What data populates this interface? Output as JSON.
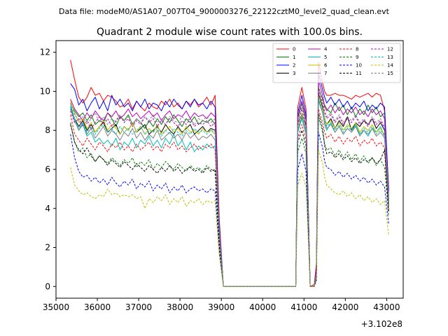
{
  "chart_data": {
    "type": "line",
    "suptitle": "Data file: modeM0/AS1A07_007T04_9000003276_22122cztM0_level2_quad_clean.evt",
    "title": "Quadrant 2 module wise count rates with 100.0s bins.",
    "xlabel": "",
    "ylabel": "",
    "x_offset_label": "+3.102e8",
    "xlim": [
      35000,
      43400
    ],
    "ylim": [
      -0.6,
      12.6
    ],
    "xticks": [
      35000,
      36000,
      37000,
      38000,
      39000,
      40000,
      41000,
      42000,
      43000
    ],
    "yticks": [
      0,
      2,
      4,
      6,
      8,
      10,
      12
    ],
    "grid": false,
    "legend_position": "top-right",
    "x": [
      35350,
      35450,
      35550,
      35650,
      35750,
      35850,
      35950,
      36050,
      36150,
      36250,
      36350,
      36450,
      36550,
      36650,
      36750,
      36850,
      36950,
      37050,
      37150,
      37250,
      37350,
      37450,
      37550,
      37650,
      37750,
      37850,
      37950,
      38050,
      38150,
      38250,
      38350,
      38450,
      38550,
      38650,
      38750,
      38850,
      38950,
      39050,
      40800,
      40850,
      40950,
      41050,
      41150,
      41250,
      41300,
      41350,
      41450,
      41500,
      41550,
      41650,
      41750,
      41850,
      41950,
      42050,
      42150,
      42250,
      42350,
      42450,
      42550,
      42650,
      42750,
      42850,
      42950,
      43050
    ],
    "series": [
      {
        "name": "0",
        "color": "#ff0000",
        "dash": "solid",
        "values": [
          11.6,
          10.6,
          9.7,
          9.4,
          9.7,
          10.2,
          9.8,
          9.9,
          9.5,
          9.8,
          9.7,
          9.5,
          9.2,
          9.3,
          9.6,
          9.1,
          9.5,
          9.2,
          9.0,
          9.4,
          9.2,
          9.1,
          9.5,
          9.3,
          9.6,
          9.2,
          9.4,
          9.1,
          9.5,
          9.3,
          9.6,
          9.2,
          9.4,
          9.7,
          9.3,
          9.8,
          3.5,
          0.0,
          0.0,
          9.2,
          10.2,
          9.1,
          0.0,
          0.1,
          1.2,
          11.5,
          10.4,
          10.0,
          9.8,
          9.8,
          9.9,
          9.8,
          9.8,
          9.7,
          9.6,
          9.8,
          9.7,
          9.8,
          9.9,
          9.7,
          9.9,
          9.8,
          9.0,
          5.0
        ]
      },
      {
        "name": "1",
        "color": "#008000",
        "dash": "solid",
        "values": [
          9.4,
          9.0,
          8.7,
          8.9,
          8.5,
          8.8,
          8.3,
          8.5,
          8.4,
          8.9,
          8.6,
          8.2,
          8.7,
          8.5,
          8.8,
          8.3,
          8.6,
          8.4,
          8.1,
          8.5,
          8.2,
          8.6,
          8.3,
          8.7,
          8.4,
          8.8,
          8.5,
          8.2,
          8.6,
          8.4,
          8.7,
          8.3,
          8.5,
          8.4,
          8.6,
          8.3,
          3.0,
          0.0,
          0.0,
          8.6,
          9.4,
          8.5,
          0.0,
          0.0,
          0.8,
          10.2,
          9.6,
          9.3,
          9.1,
          8.9,
          9.4,
          9.0,
          9.3,
          8.8,
          9.2,
          8.7,
          9.1,
          8.8,
          9.3,
          8.9,
          9.2,
          8.7,
          8.9,
          4.8
        ]
      },
      {
        "name": "2",
        "color": "#0000ff",
        "dash": "solid",
        "values": [
          10.4,
          10.1,
          9.3,
          9.6,
          9.0,
          9.4,
          9.7,
          9.1,
          9.5,
          9.0,
          9.8,
          9.3,
          9.6,
          9.2,
          9.4,
          9.0,
          9.5,
          9.2,
          9.6,
          9.1,
          9.4,
          9.3,
          9.0,
          9.5,
          9.2,
          9.6,
          9.3,
          9.1,
          9.5,
          9.2,
          9.6,
          9.3,
          9.4,
          9.1,
          9.5,
          9.2,
          3.2,
          0.0,
          0.0,
          8.9,
          9.8,
          8.8,
          0.0,
          0.0,
          1.0,
          10.9,
          10.1,
          9.7,
          9.4,
          9.7,
          9.3,
          9.6,
          9.2,
          9.5,
          9.1,
          9.4,
          9.2,
          9.5,
          9.0,
          9.3,
          9.1,
          9.4,
          9.2,
          4.9
        ]
      },
      {
        "name": "3",
        "color": "#000000",
        "dash": "solid",
        "values": [
          9.2,
          8.6,
          8.2,
          8.5,
          8.0,
          8.3,
          7.9,
          8.2,
          8.4,
          7.9,
          8.1,
          8.3,
          7.8,
          8.2,
          8.0,
          8.4,
          7.9,
          8.1,
          8.3,
          7.8,
          8.0,
          8.2,
          7.9,
          8.3,
          8.0,
          7.8,
          8.2,
          7.9,
          8.1,
          8.3,
          7.8,
          8.0,
          8.2,
          7.9,
          8.1,
          8.0,
          2.8,
          0.0,
          0.0,
          8.4,
          8.8,
          8.3,
          0.0,
          0.0,
          0.5,
          9.9,
          9.2,
          8.6,
          8.3,
          8.6,
          8.1,
          8.5,
          8.2,
          8.7,
          8.0,
          8.4,
          8.2,
          8.5,
          8.3,
          8.6,
          8.1,
          8.4,
          8.0,
          4.4
        ]
      },
      {
        "name": "4",
        "color": "#bf00bf",
        "dash": "solid",
        "values": [
          9.6,
          9.1,
          8.8,
          8.5,
          8.9,
          8.6,
          9.0,
          8.7,
          8.5,
          8.9,
          8.7,
          9.0,
          8.6,
          8.8,
          9.1,
          8.7,
          8.9,
          8.6,
          8.8,
          9.0,
          8.7,
          8.9,
          8.5,
          8.8,
          9.0,
          8.6,
          8.8,
          8.7,
          9.0,
          8.6,
          8.9,
          8.7,
          8.8,
          8.6,
          8.9,
          8.7,
          3.0,
          0.0,
          0.0,
          8.7,
          9.5,
          8.6,
          0.0,
          0.0,
          0.9,
          10.6,
          9.8,
          9.2,
          9.0,
          9.3,
          8.9,
          9.2,
          8.8,
          9.1,
          8.9,
          9.2,
          8.8,
          9.0,
          8.7,
          9.1,
          8.8,
          9.0,
          8.6,
          4.6
        ]
      },
      {
        "name": "5",
        "color": "#00bfbf",
        "dash": "solid",
        "values": [
          9.3,
          8.6,
          8.0,
          8.3,
          7.7,
          7.9,
          7.4,
          7.6,
          7.3,
          7.5,
          7.2,
          7.6,
          7.0,
          7.4,
          7.2,
          7.6,
          7.1,
          7.5,
          7.3,
          7.7,
          7.2,
          7.5,
          7.1,
          7.6,
          7.3,
          7.8,
          7.2,
          7.5,
          7.0,
          7.4,
          6.9,
          7.2,
          7.0,
          7.3,
          7.1,
          7.2,
          2.6,
          0.0,
          0.0,
          7.9,
          8.6,
          7.8,
          0.0,
          0.0,
          0.6,
          9.5,
          8.9,
          8.3,
          8.0,
          8.4,
          7.9,
          8.2,
          7.8,
          8.1,
          7.9,
          8.3,
          7.8,
          8.0,
          7.7,
          8.1,
          7.9,
          8.2,
          7.7,
          4.2
        ]
      },
      {
        "name": "6",
        "color": "#bfbf00",
        "dash": "solid",
        "values": [
          9.5,
          8.9,
          8.4,
          8.6,
          8.1,
          8.4,
          7.9,
          8.2,
          8.5,
          8.0,
          8.3,
          8.1,
          7.8,
          8.2,
          8.0,
          8.4,
          7.9,
          8.2,
          7.8,
          8.1,
          7.9,
          8.3,
          7.8,
          8.0,
          8.2,
          7.9,
          8.1,
          7.8,
          8.2,
          7.9,
          8.0,
          7.8,
          8.1,
          7.9,
          8.0,
          7.8,
          2.7,
          0.0,
          0.0,
          8.2,
          8.9,
          8.1,
          0.0,
          0.0,
          0.6,
          9.8,
          9.1,
          8.6,
          8.3,
          8.5,
          8.1,
          8.4,
          8.0,
          8.3,
          8.1,
          8.4,
          7.9,
          8.2,
          8.0,
          8.3,
          7.9,
          8.1,
          7.8,
          4.3
        ]
      },
      {
        "name": "7",
        "color": "#808080",
        "dash": "solid",
        "values": [
          9.1,
          8.5,
          8.0,
          8.4,
          7.8,
          8.1,
          7.6,
          7.9,
          8.2,
          7.7,
          8.0,
          7.8,
          7.5,
          7.9,
          7.7,
          8.1,
          7.6,
          7.9,
          7.5,
          7.8,
          7.6,
          8.0,
          7.5,
          7.7,
          7.9,
          7.6,
          7.8,
          7.5,
          7.9,
          7.6,
          7.8,
          7.5,
          7.7,
          7.6,
          7.8,
          7.5,
          2.6,
          0.0,
          0.0,
          8.0,
          8.7,
          7.9,
          0.0,
          0.0,
          0.6,
          9.6,
          8.9,
          8.4,
          8.1,
          8.3,
          7.9,
          8.2,
          7.8,
          8.1,
          7.9,
          8.2,
          7.7,
          8.0,
          7.8,
          8.1,
          7.7,
          7.9,
          7.6,
          4.1
        ]
      },
      {
        "name": "8",
        "color": "#ff0000",
        "dash": "dashed",
        "values": [
          8.8,
          7.8,
          7.5,
          7.2,
          7.6,
          7.3,
          7.0,
          7.4,
          7.2,
          6.9,
          7.3,
          7.1,
          7.4,
          7.0,
          7.2,
          6.9,
          7.3,
          7.0,
          7.2,
          7.4,
          7.0,
          7.2,
          6.9,
          7.3,
          7.1,
          7.4,
          7.0,
          7.2,
          6.9,
          7.1,
          7.3,
          7.0,
          7.2,
          7.1,
          7.3,
          7.0,
          2.4,
          0.0,
          0.0,
          7.6,
          8.3,
          7.5,
          0.0,
          0.0,
          0.5,
          9.1,
          8.4,
          7.9,
          7.6,
          7.8,
          7.4,
          7.7,
          7.3,
          7.6,
          7.4,
          7.7,
          7.2,
          7.5,
          7.3,
          7.6,
          7.2,
          7.4,
          7.1,
          3.9
        ]
      },
      {
        "name": "9",
        "color": "#008000",
        "dash": "dashed",
        "values": [
          8.4,
          7.4,
          6.9,
          7.1,
          6.6,
          6.8,
          6.4,
          6.7,
          6.5,
          6.3,
          6.6,
          6.4,
          6.2,
          6.5,
          6.3,
          6.6,
          6.1,
          6.4,
          6.2,
          6.5,
          6.0,
          6.3,
          6.1,
          6.4,
          6.2,
          6.0,
          6.3,
          6.1,
          5.9,
          6.2,
          6.0,
          6.1,
          5.9,
          6.2,
          6.0,
          5.9,
          2.1,
          0.0,
          0.0,
          6.9,
          7.6,
          6.8,
          0.0,
          0.0,
          0.4,
          8.7,
          7.9,
          7.3,
          7.0,
          7.1,
          6.7,
          7.0,
          6.6,
          6.9,
          6.5,
          6.8,
          6.4,
          6.7,
          6.3,
          6.6,
          6.2,
          6.5,
          6.1,
          3.6
        ]
      },
      {
        "name": "10",
        "color": "#0000ff",
        "dash": "dashed",
        "values": [
          7.8,
          6.6,
          5.9,
          5.6,
          5.7,
          5.4,
          5.6,
          5.3,
          5.5,
          5.2,
          5.6,
          5.3,
          5.1,
          5.4,
          5.2,
          5.5,
          5.0,
          5.3,
          5.1,
          5.4,
          4.9,
          5.2,
          5.0,
          5.3,
          4.8,
          5.1,
          4.9,
          5.2,
          4.8,
          5.0,
          5.1,
          4.9,
          5.0,
          4.8,
          5.0,
          4.9,
          1.8,
          0.0,
          0.0,
          6.0,
          6.8,
          5.9,
          0.0,
          0.0,
          0.3,
          7.9,
          7.1,
          6.4,
          6.1,
          6.0,
          5.7,
          5.9,
          5.6,
          5.8,
          5.5,
          5.7,
          5.4,
          5.6,
          5.3,
          5.5,
          5.2,
          5.4,
          5.1,
          3.2
        ]
      },
      {
        "name": "11",
        "color": "#000000",
        "dash": "dashed",
        "values": [
          8.3,
          7.4,
          7.0,
          6.8,
          7.1,
          6.7,
          6.4,
          6.7,
          6.5,
          6.2,
          6.5,
          6.3,
          6.1,
          6.4,
          6.2,
          6.0,
          6.3,
          6.1,
          5.9,
          6.2,
          6.0,
          5.8,
          6.1,
          5.9,
          6.2,
          5.9,
          6.1,
          5.8,
          6.0,
          6.1,
          5.9,
          6.0,
          5.8,
          6.1,
          5.9,
          6.0,
          2.1,
          0.0,
          0.0,
          7.4,
          8.0,
          7.2,
          0.0,
          0.0,
          0.4,
          8.9,
          8.1,
          7.2,
          6.8,
          6.9,
          6.6,
          6.8,
          6.5,
          6.7,
          6.4,
          6.6,
          6.3,
          6.5,
          6.4,
          6.6,
          6.3,
          6.5,
          7.0,
          3.8
        ]
      },
      {
        "name": "12",
        "color": "#bf00bf",
        "dash": "dashed",
        "values": [
          9.0,
          8.4,
          8.6,
          8.2,
          8.5,
          8.1,
          8.4,
          8.7,
          8.3,
          8.6,
          8.2,
          8.5,
          8.8,
          8.4,
          8.6,
          8.2,
          8.5,
          8.3,
          8.7,
          8.4,
          8.6,
          8.2,
          8.5,
          8.3,
          8.6,
          8.4,
          8.2,
          8.5,
          8.3,
          8.6,
          8.2,
          8.4,
          8.3,
          8.5,
          8.2,
          8.4,
          2.9,
          0.0,
          0.0,
          8.3,
          9.1,
          8.2,
          0.0,
          0.0,
          0.7,
          10.1,
          9.4,
          8.9,
          8.6,
          8.8,
          8.4,
          8.7,
          8.3,
          8.6,
          8.4,
          8.7,
          8.3,
          8.5,
          8.2,
          8.6,
          8.3,
          8.5,
          8.1,
          4.5
        ]
      },
      {
        "name": "13",
        "color": "#00bfbf",
        "dash": "dashed",
        "values": [
          9.2,
          8.5,
          8.1,
          8.4,
          7.9,
          8.2,
          7.8,
          8.1,
          8.3,
          7.9,
          8.1,
          7.8,
          8.2,
          7.9,
          8.1,
          7.8,
          8.0,
          8.2,
          7.8,
          8.0,
          7.9,
          8.1,
          7.7,
          8.0,
          7.8,
          8.1,
          7.9,
          7.7,
          8.0,
          7.8,
          8.1,
          7.9,
          8.0,
          7.8,
          8.0,
          7.9,
          2.7,
          0.0,
          0.0,
          8.1,
          8.8,
          8.0,
          0.0,
          0.0,
          0.6,
          9.7,
          9.0,
          8.5,
          8.2,
          8.4,
          8.0,
          8.3,
          7.9,
          8.2,
          8.0,
          8.3,
          7.8,
          8.1,
          7.9,
          8.2,
          7.8,
          8.0,
          7.7,
          4.2
        ]
      },
      {
        "name": "14",
        "color": "#bfbf00",
        "dash": "dashed",
        "values": [
          6.1,
          5.2,
          4.9,
          4.7,
          4.8,
          4.6,
          4.5,
          4.7,
          4.6,
          5.0,
          4.7,
          4.8,
          4.6,
          4.7,
          4.6,
          4.7,
          4.5,
          4.6,
          4.0,
          4.5,
          4.3,
          4.6,
          4.4,
          4.7,
          4.2,
          4.5,
          4.3,
          4.6,
          4.1,
          4.4,
          4.3,
          4.5,
          4.2,
          4.4,
          4.3,
          4.4,
          1.6,
          0.0,
          0.0,
          5.2,
          5.8,
          5.1,
          0.0,
          0.0,
          0.3,
          7.0,
          6.3,
          5.6,
          5.2,
          5.0,
          4.8,
          4.7,
          4.9,
          4.6,
          4.8,
          4.5,
          4.7,
          4.4,
          4.6,
          4.3,
          4.5,
          4.2,
          4.4,
          2.6
        ]
      },
      {
        "name": "15",
        "color": "#808080",
        "dash": "dashed",
        "values": [
          9.4,
          8.8,
          8.5,
          8.7,
          8.3,
          8.6,
          8.9,
          8.4,
          8.7,
          8.3,
          8.6,
          8.4,
          8.8,
          8.5,
          8.7,
          8.3,
          8.6,
          8.4,
          8.7,
          8.5,
          8.8,
          8.4,
          8.6,
          8.3,
          8.7,
          8.5,
          8.4,
          8.7,
          8.5,
          8.6,
          8.3,
          8.6,
          8.5,
          8.7,
          8.4,
          8.6,
          2.9,
          0.0,
          0.0,
          8.5,
          9.2,
          8.4,
          0.0,
          0.0,
          0.7,
          10.3,
          9.5,
          9.0,
          8.7,
          8.9,
          8.5,
          8.8,
          8.4,
          8.7,
          8.5,
          8.8,
          8.4,
          8.6,
          8.3,
          8.7,
          8.4,
          8.6,
          8.2,
          4.6
        ]
      }
    ]
  }
}
